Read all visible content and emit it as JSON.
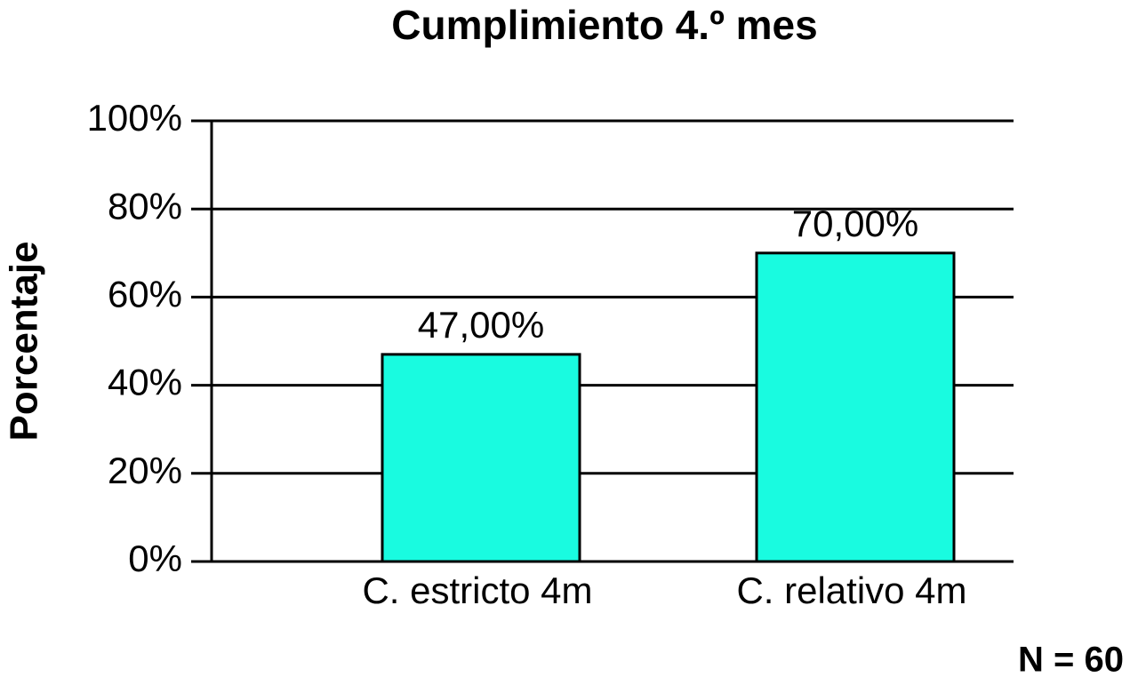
{
  "chart_data": {
    "type": "bar",
    "title": "Cumplimiento 4.º mes",
    "y_label": "Porcentaje",
    "categories": [
      "C. estricto 4m",
      "C. relativo 4m"
    ],
    "values": [
      47,
      70
    ],
    "value_labels": [
      "47,00%",
      "70,00%"
    ],
    "color": "#19fbe0",
    "ylim": [
      0,
      100
    ],
    "yticks": [
      {
        "value": 0,
        "label": "0%"
      },
      {
        "value": 20,
        "label": "20%"
      },
      {
        "value": 40,
        "label": "40%"
      },
      {
        "value": 60,
        "label": "60%"
      },
      {
        "value": 80,
        "label": "80%"
      },
      {
        "value": 100,
        "label": "100%"
      }
    ],
    "grid": true,
    "annotation": "N = 60"
  }
}
